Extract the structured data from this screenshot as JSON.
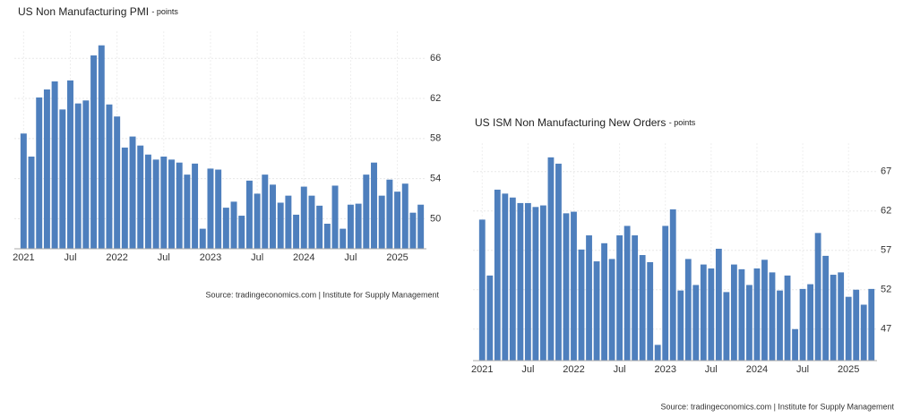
{
  "chart_data": [
    {
      "type": "bar",
      "title": "US Non Manufacturing PMI",
      "unit": "- points",
      "source": "Source: tradingeconomics.com | Institute for Supply Management",
      "categories": [
        "2021",
        null,
        null,
        null,
        null,
        null,
        "Jul",
        null,
        null,
        null,
        null,
        null,
        "2022",
        null,
        null,
        null,
        null,
        null,
        "Jul",
        null,
        null,
        null,
        null,
        null,
        "2023",
        null,
        null,
        null,
        null,
        null,
        "Jul",
        null,
        null,
        null,
        null,
        null,
        "2024",
        null,
        null,
        null,
        null,
        null,
        "Jul",
        null,
        null,
        null,
        null,
        null,
        "2025",
        null,
        null,
        null
      ],
      "values": [
        58.5,
        56.2,
        62.1,
        62.9,
        63.7,
        60.9,
        63.8,
        61.5,
        61.8,
        66.3,
        67.3,
        61.4,
        60.2,
        57.1,
        58.2,
        57.3,
        56.4,
        55.9,
        56.2,
        55.9,
        55.6,
        54.4,
        55.5,
        49.0,
        55.0,
        54.9,
        51.1,
        51.7,
        50.3,
        53.8,
        52.5,
        54.4,
        53.4,
        51.6,
        52.3,
        50.4,
        53.2,
        52.3,
        51.3,
        49.5,
        53.3,
        49.0,
        51.4,
        51.5,
        54.4,
        55.6,
        52.3,
        53.9,
        52.7,
        53.5,
        50.6,
        51.4
      ],
      "color": "#4e7fbd",
      "ylim": [
        47,
        68.7
      ],
      "yticks": [
        50,
        54,
        58,
        62,
        66
      ],
      "grid": true
    },
    {
      "type": "bar",
      "title": "US ISM Non Manufacturing New Orders",
      "unit": "- points",
      "source": "Source: tradingeconomics.com | Institute for Supply Management",
      "categories": [
        "2021",
        null,
        null,
        null,
        null,
        null,
        "Jul",
        null,
        null,
        null,
        null,
        null,
        "2022",
        null,
        null,
        null,
        null,
        null,
        "Jul",
        null,
        null,
        null,
        null,
        null,
        "2023",
        null,
        null,
        null,
        null,
        null,
        "Jul",
        null,
        null,
        null,
        null,
        null,
        "2024",
        null,
        null,
        null,
        null,
        null,
        "Jul",
        null,
        null,
        null,
        null,
        null,
        "2025",
        null,
        null,
        null
      ],
      "values": [
        60.9,
        53.8,
        64.7,
        64.2,
        63.7,
        63.0,
        63.0,
        62.5,
        62.7,
        68.8,
        68.0,
        61.7,
        61.9,
        57.1,
        58.9,
        55.6,
        57.9,
        55.9,
        58.9,
        60.1,
        58.9,
        56.4,
        55.5,
        45.0,
        60.1,
        62.2,
        51.9,
        55.9,
        52.6,
        55.2,
        54.7,
        57.2,
        51.7,
        55.2,
        54.6,
        52.6,
        54.7,
        55.8,
        54.2,
        51.9,
        53.8,
        47.0,
        52.1,
        52.7,
        59.2,
        56.3,
        53.9,
        54.2,
        51.1,
        52.0,
        50.1,
        52.1
      ],
      "color": "#4e7fbd",
      "ylim": [
        43,
        70.6
      ],
      "yticks": [
        47,
        52,
        57,
        62,
        67
      ],
      "grid": true
    }
  ]
}
